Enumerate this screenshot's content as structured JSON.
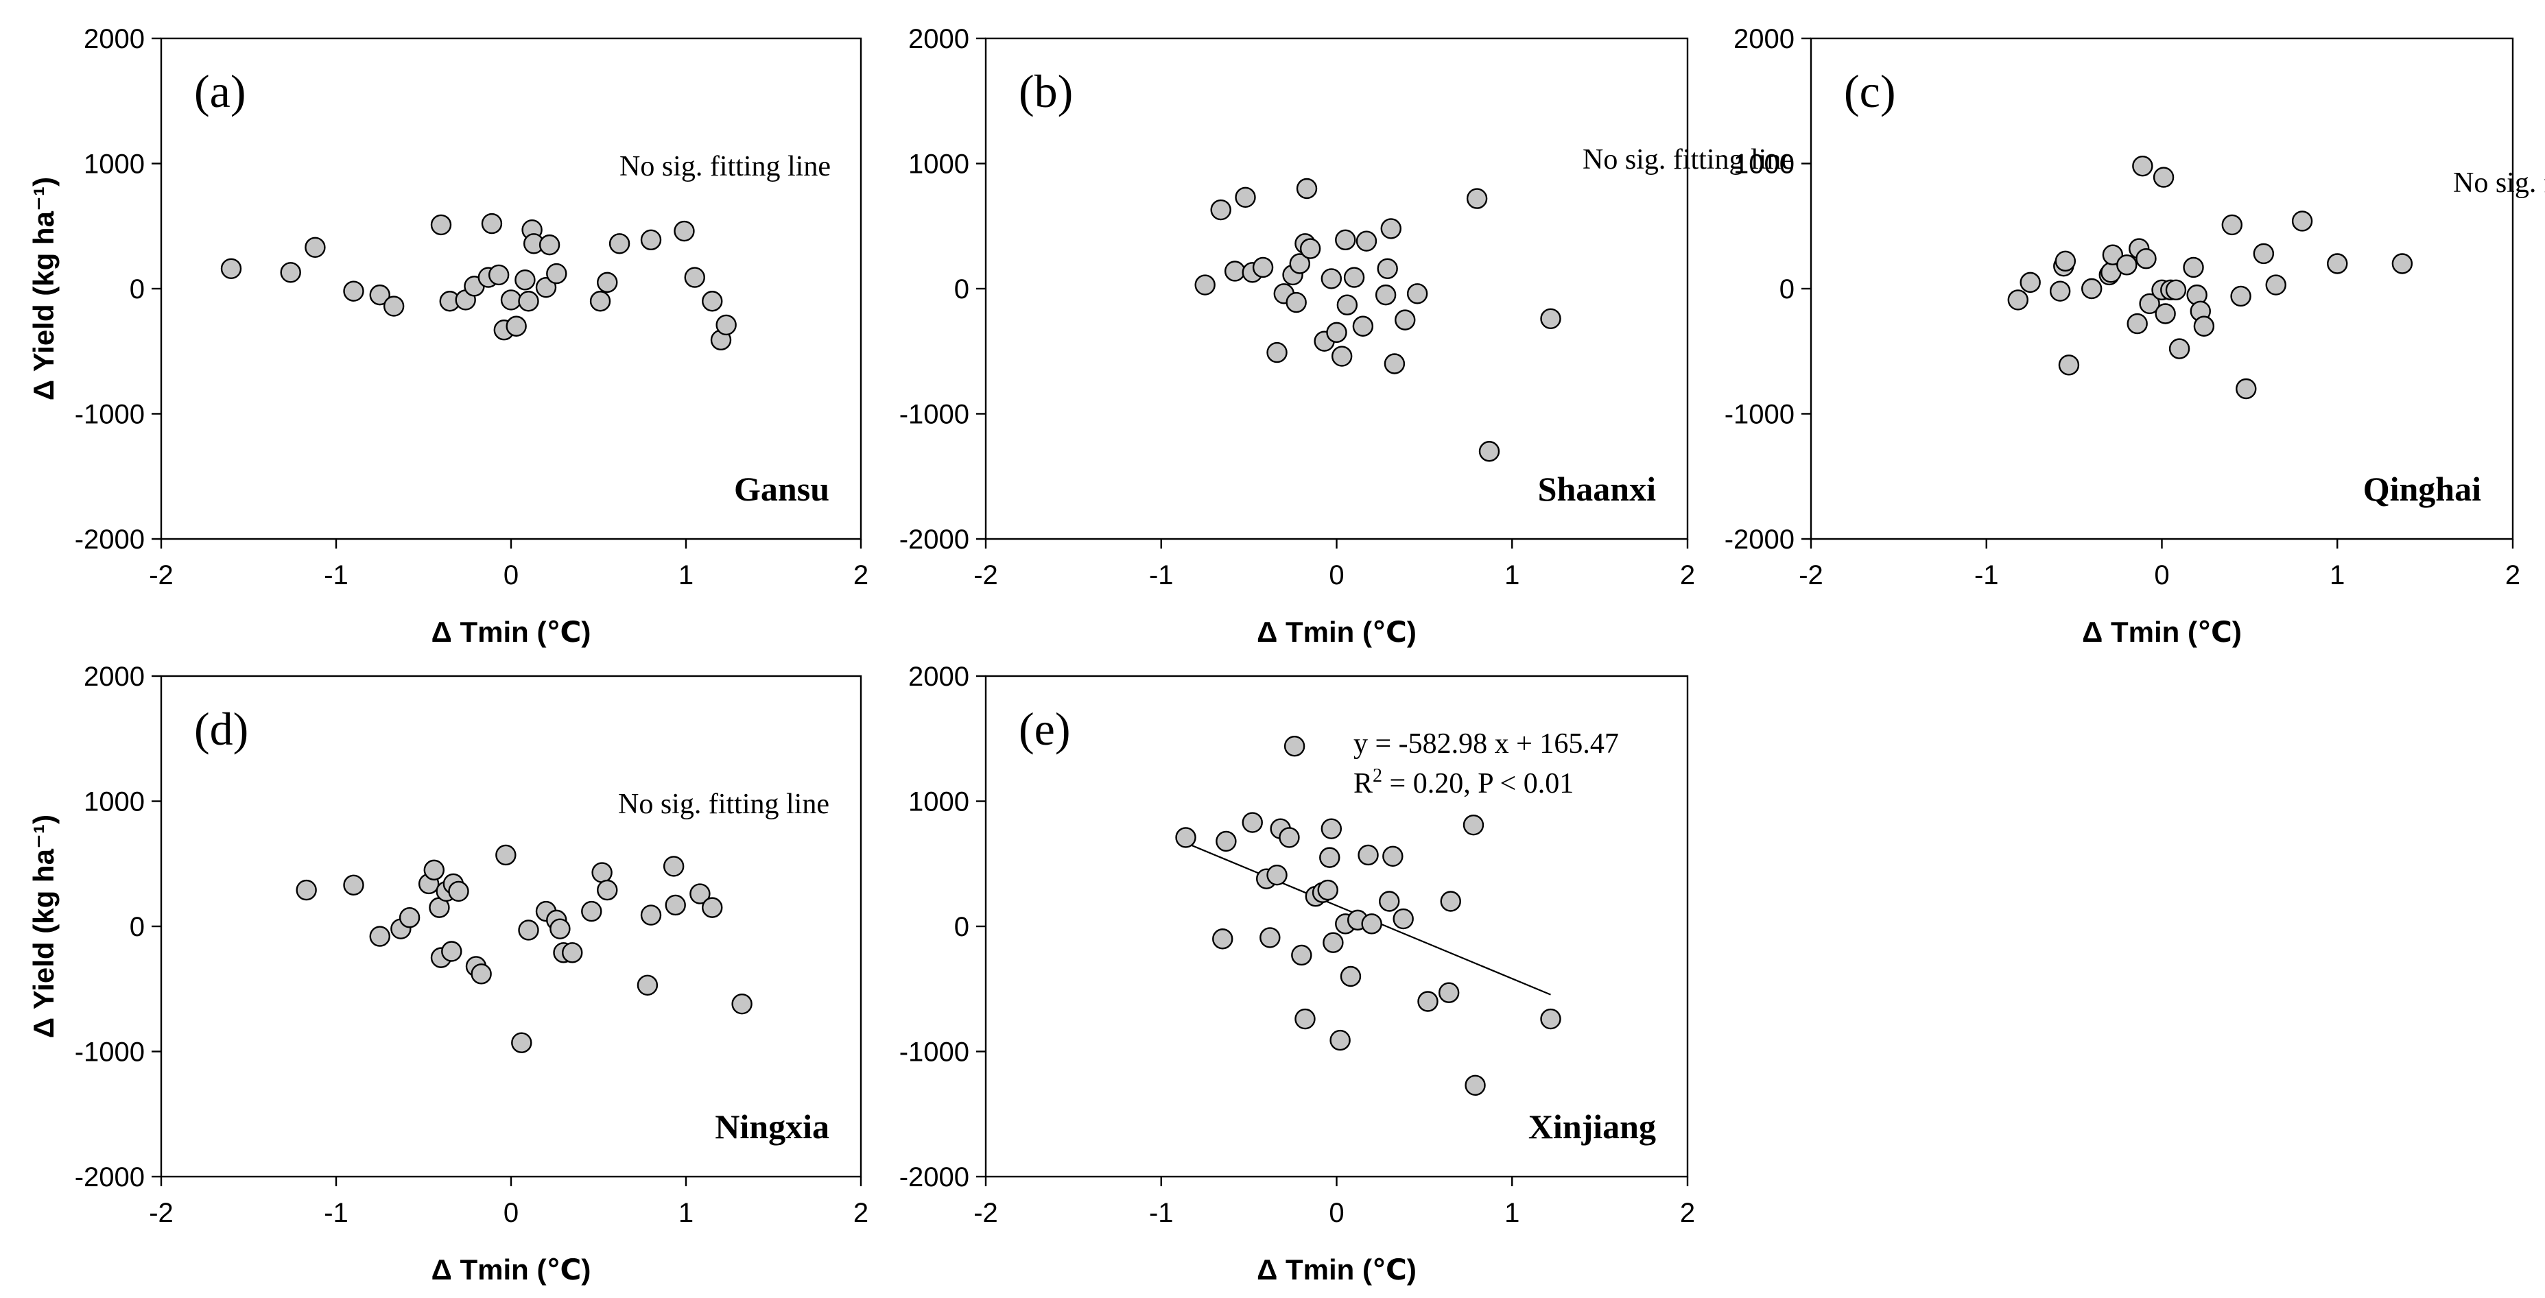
{
  "colors": {
    "point_fill": "#c6c6c6",
    "point_stroke": "#000000",
    "axis": "#000000",
    "background": "#ffffff"
  },
  "chart_data": [
    {
      "type": "scatter",
      "letter": "(a)",
      "region": "Gansu",
      "xlabel": "Δ Tmin (℃)",
      "ylabel": "Δ Yield (kg ha⁻¹)",
      "ylabel_parts": {
        "main": "Δ Yield (kg ha",
        "sup": "-1",
        "close": ")"
      },
      "xlim": [
        -2,
        2
      ],
      "ylim": [
        -2000,
        2000
      ],
      "xticks": [
        -2,
        -1,
        0,
        1,
        2
      ],
      "yticks": [
        -2000,
        -1000,
        0,
        1000,
        2000
      ],
      "annotation": "No sig. fitting line",
      "x": [
        -1.6,
        -1.26,
        -1.12,
        -0.9,
        -0.75,
        -0.67,
        -0.4,
        -0.35,
        -0.26,
        -0.21,
        -0.13,
        -0.11,
        -0.07,
        -0.04,
        0.0,
        0.03,
        0.08,
        0.1,
        0.12,
        0.13,
        0.2,
        0.22,
        0.26,
        0.51,
        0.55,
        0.62,
        0.8,
        0.99,
        1.05,
        1.15,
        1.2,
        1.23
      ],
      "y": [
        160,
        130,
        330,
        -20,
        -50,
        -140,
        510,
        -100,
        -90,
        20,
        90,
        520,
        110,
        -330,
        -90,
        -300,
        70,
        -100,
        470,
        360,
        10,
        350,
        120,
        -100,
        50,
        360,
        390,
        460,
        90,
        -100,
        -410,
        -290
      ]
    },
    {
      "type": "scatter",
      "letter": "(b)",
      "region": "Shaanxi",
      "xlabel": "Δ Tmin (℃)",
      "ylabel": "Δ Yield (kg ha⁻¹)",
      "xlim": [
        -2,
        2
      ],
      "ylim": [
        -2000,
        2000
      ],
      "xticks": [
        -2,
        -1,
        0,
        1,
        2
      ],
      "yticks": [
        -2000,
        -1000,
        0,
        1000,
        2000
      ],
      "annotation": "No sig. fitting line",
      "x": [
        -0.75,
        -0.66,
        -0.58,
        -0.52,
        -0.48,
        -0.42,
        -0.34,
        -0.3,
        -0.25,
        -0.23,
        -0.21,
        -0.18,
        -0.17,
        -0.15,
        -0.07,
        -0.03,
        0.0,
        0.03,
        0.05,
        0.06,
        0.1,
        0.15,
        0.17,
        0.28,
        0.29,
        0.31,
        0.33,
        0.39,
        0.46,
        0.8,
        0.87,
        1.22
      ],
      "y": [
        30,
        630,
        140,
        730,
        130,
        170,
        -510,
        -40,
        110,
        -110,
        200,
        360,
        800,
        320,
        -420,
        80,
        -350,
        -540,
        390,
        -130,
        90,
        -300,
        380,
        -50,
        160,
        480,
        -600,
        -250,
        -40,
        720,
        -1300,
        -240
      ]
    },
    {
      "type": "scatter",
      "letter": "(c)",
      "region": "Qinghai",
      "xlabel": "Δ Tmin (℃)",
      "ylabel": "Δ Yield (kg ha⁻¹)",
      "xlim": [
        -2,
        2
      ],
      "ylim": [
        -2000,
        2000
      ],
      "xticks": [
        -2,
        -1,
        0,
        1,
        2
      ],
      "yticks": [
        -2000,
        -1000,
        0,
        1000,
        2000
      ],
      "annotation": "No sig. fitting line",
      "x": [
        -0.82,
        -0.75,
        -0.58,
        -0.56,
        -0.55,
        -0.53,
        -0.4,
        -0.3,
        -0.29,
        -0.28,
        -0.2,
        -0.14,
        -0.13,
        -0.11,
        -0.09,
        -0.07,
        0.0,
        0.01,
        0.02,
        0.05,
        0.08,
        0.1,
        0.18,
        0.2,
        0.22,
        0.24,
        0.4,
        0.45,
        0.48,
        0.58,
        0.65,
        0.8,
        1.0,
        1.37
      ],
      "y": [
        -90,
        50,
        -20,
        180,
        220,
        -610,
        0,
        110,
        130,
        270,
        190,
        -280,
        320,
        980,
        240,
        -120,
        -10,
        890,
        -200,
        -10,
        -10,
        -480,
        170,
        -50,
        -180,
        -300,
        510,
        -60,
        -800,
        280,
        30,
        540,
        200,
        200
      ]
    },
    {
      "type": "scatter",
      "letter": "(d)",
      "region": "Ningxia",
      "xlabel": "Δ Tmin (℃)",
      "ylabel": "Δ Yield (kg ha⁻¹)",
      "xlim": [
        -2,
        2
      ],
      "ylim": [
        -2000,
        2000
      ],
      "xticks": [
        -2,
        -1,
        0,
        1,
        2
      ],
      "yticks": [
        -2000,
        -1000,
        0,
        1000,
        2000
      ],
      "annotation": "No sig. fitting line",
      "x": [
        -1.17,
        -0.9,
        -0.75,
        -0.63,
        -0.58,
        -0.47,
        -0.44,
        -0.41,
        -0.4,
        -0.37,
        -0.34,
        -0.33,
        -0.3,
        -0.2,
        -0.17,
        -0.03,
        0.06,
        0.1,
        0.2,
        0.26,
        0.28,
        0.3,
        0.35,
        0.46,
        0.52,
        0.55,
        0.78,
        0.8,
        0.93,
        0.94,
        1.08,
        1.15,
        1.32
      ],
      "y": [
        290,
        330,
        -80,
        -20,
        70,
        340,
        450,
        150,
        -250,
        280,
        -200,
        340,
        280,
        -320,
        -380,
        570,
        -930,
        -30,
        120,
        50,
        -20,
        -210,
        -210,
        120,
        430,
        290,
        -470,
        90,
        480,
        170,
        260,
        150,
        -620
      ]
    },
    {
      "type": "scatter",
      "letter": "(e)",
      "region": "Xinjiang",
      "xlabel": "Δ Tmin (℃)",
      "ylabel": "Δ Yield (kg ha⁻¹)",
      "xlim": [
        -2,
        2
      ],
      "ylim": [
        -2000,
        2000
      ],
      "xticks": [
        -2,
        -1,
        0,
        1,
        2
      ],
      "yticks": [
        -2000,
        -1000,
        0,
        1000,
        2000
      ],
      "annotation": "y = -582.98 x + 165.47",
      "annotation2_parts": {
        "r": "R",
        "sup": "2",
        "rest": " = 0.20, P < 0.01"
      },
      "fit": {
        "slope": -582.98,
        "intercept": 165.47,
        "x_range": [
          -0.86,
          1.22
        ]
      },
      "x": [
        -0.86,
        -0.65,
        -0.63,
        -0.48,
        -0.4,
        -0.38,
        -0.34,
        -0.32,
        -0.27,
        -0.24,
        -0.2,
        -0.18,
        -0.12,
        -0.08,
        -0.05,
        -0.04,
        -0.03,
        -0.02,
        0.02,
        0.05,
        0.08,
        0.12,
        0.18,
        0.2,
        0.3,
        0.32,
        0.38,
        0.52,
        0.64,
        0.65,
        0.78,
        0.79,
        1.22
      ],
      "y": [
        710,
        -100,
        680,
        830,
        380,
        -90,
        410,
        780,
        710,
        1440,
        -230,
        -740,
        240,
        270,
        290,
        550,
        780,
        -130,
        -910,
        20,
        -400,
        50,
        570,
        20,
        200,
        560,
        60,
        -600,
        -530,
        200,
        810,
        -1270,
        -740
      ]
    }
  ]
}
